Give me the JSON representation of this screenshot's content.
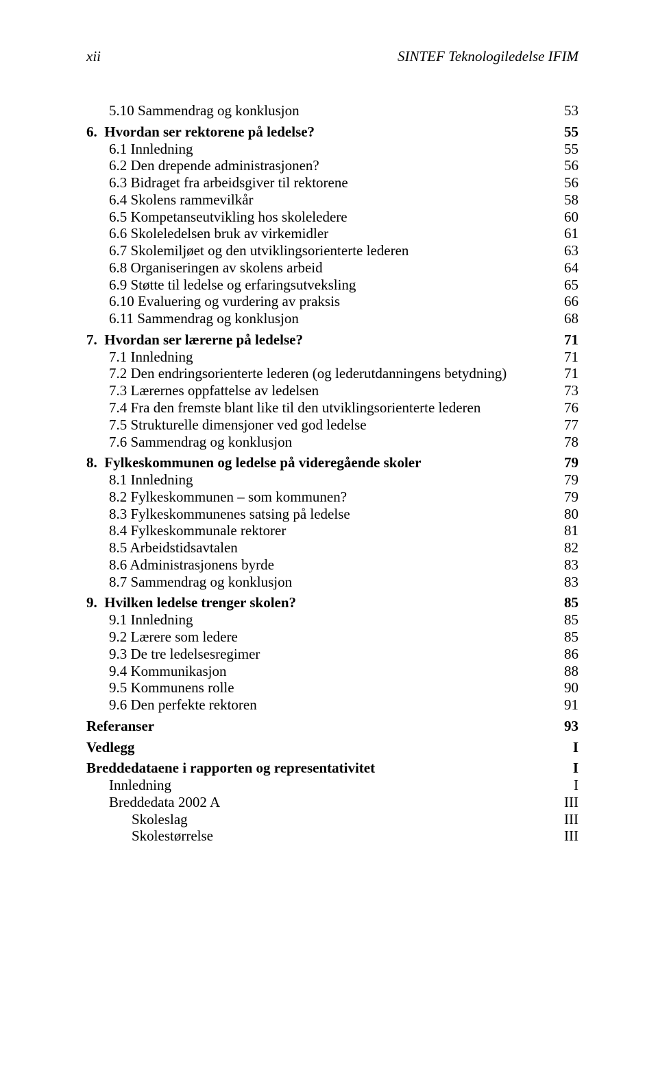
{
  "header": {
    "page_marker": "xii",
    "running_title": "SINTEF Teknologiledelse IFIM"
  },
  "fonts": {
    "body_family": "Times New Roman",
    "body_size_pt": 16,
    "header_style": "italic"
  },
  "colors": {
    "text": "#000000",
    "background": "#ffffff"
  },
  "toc": {
    "pre_items": [
      {
        "label": "5.10 Sammendrag og konklusjon",
        "page": "53"
      }
    ],
    "sections": [
      {
        "num": "6.",
        "title": "Hvordan ser rektorene på ledelse?",
        "page": "55",
        "items": [
          {
            "label": "6.1 Innledning",
            "page": "55"
          },
          {
            "label": "6.2 Den drepende administrasjonen?",
            "page": "56"
          },
          {
            "label": "6.3 Bidraget fra arbeidsgiver til rektorene",
            "page": "56"
          },
          {
            "label": "6.4 Skolens rammevilkår",
            "page": "58"
          },
          {
            "label": "6.5 Kompetanseutvikling hos skoleledere",
            "page": "60"
          },
          {
            "label": "6.6 Skoleledelsen bruk av virkemidler",
            "page": "61"
          },
          {
            "label": "6.7 Skolemiljøet og den utviklingsorienterte lederen",
            "page": "63"
          },
          {
            "label": "6.8 Organiseringen av skolens arbeid",
            "page": "64"
          },
          {
            "label": "6.9 Støtte til ledelse og erfaringsutveksling",
            "page": "65"
          },
          {
            "label": "6.10 Evaluering og vurdering av praksis",
            "page": "66"
          },
          {
            "label": "6.11 Sammendrag og konklusjon",
            "page": "68"
          }
        ]
      },
      {
        "num": "7.",
        "title": "Hvordan ser lærerne på ledelse?",
        "page": "71",
        "items": [
          {
            "label": "7.1 Innledning",
            "page": "71"
          },
          {
            "label": "7.2 Den endringsorienterte lederen (og lederutdanningens betydning)",
            "page": "71"
          },
          {
            "label": "7.3 Lærernes oppfattelse av ledelsen",
            "page": "73"
          },
          {
            "label": "7.4 Fra den fremste blant like til den utviklingsorienterte lederen",
            "page": "76"
          },
          {
            "label": "7.5 Strukturelle dimensjoner ved god ledelse",
            "page": "77"
          },
          {
            "label": "7.6 Sammendrag og konklusjon",
            "page": "78"
          }
        ]
      },
      {
        "num": "8.",
        "title": "Fylkeskommunen og ledelse på videregående skoler",
        "page": "79",
        "items": [
          {
            "label": "8.1 Innledning",
            "page": "79"
          },
          {
            "label": "8.2 Fylkeskommunen – som kommunen?",
            "page": "79"
          },
          {
            "label": "8.3 Fylkeskommunenes satsing på ledelse",
            "page": "80"
          },
          {
            "label": "8.4 Fylkeskommunale rektorer",
            "page": "81"
          },
          {
            "label": "8.5 Arbeidstidsavtalen",
            "page": "82"
          },
          {
            "label": "8.6 Administrasjonens byrde",
            "page": "83"
          },
          {
            "label": "8.7 Sammendrag og konklusjon",
            "page": "83"
          }
        ]
      },
      {
        "num": "9.",
        "title": "Hvilken ledelse trenger skolen?",
        "page": "85",
        "items": [
          {
            "label": "9.1 Innledning",
            "page": "85"
          },
          {
            "label": "9.2 Lærere som ledere",
            "page": "85"
          },
          {
            "label": "9.3 De tre ledelsesregimer",
            "page": "86"
          },
          {
            "label": "9.4 Kommunikasjon",
            "page": "88"
          },
          {
            "label": "9.5 Kommunens rolle",
            "page": "90"
          },
          {
            "label": "9.6 Den perfekte rektoren",
            "page": "91"
          }
        ]
      }
    ],
    "standalone": [
      {
        "title": "Referanser",
        "page": "93"
      },
      {
        "title": "Vedlegg",
        "page": "I"
      }
    ],
    "appendix": {
      "title": "Breddedataene i rapporten og representativitet",
      "page": "I",
      "items": [
        {
          "label": "Innledning",
          "page": "I",
          "level": 1
        },
        {
          "label": "Breddedata 2002 A",
          "page": "III",
          "level": 1
        },
        {
          "label": "Skoleslag",
          "page": "III",
          "level": 2
        },
        {
          "label": "Skolestørrelse",
          "page": "III",
          "level": 2
        }
      ]
    }
  }
}
